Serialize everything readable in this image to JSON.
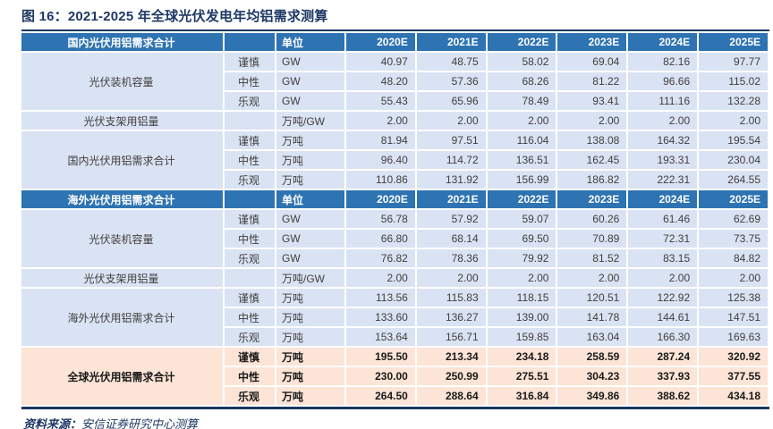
{
  "title": "图 16：2021-2025 年全球光伏发电年均铝需求测算",
  "unit_header": "单位",
  "years": [
    "2020E",
    "2021E",
    "2022E",
    "2023E",
    "2024E",
    "2025E"
  ],
  "colors": {
    "section_header_blue": "#2e73b2",
    "body_row_blue": "#dae3f3",
    "total_row_peach": "#fce4d6",
    "title_navy": "#1f3864",
    "rule_navy": "#17375e",
    "body_text": "#3f3f3f"
  },
  "sections": [
    {
      "header_label": "国内光伏用铝需求合计",
      "groups": [
        {
          "label": "光伏装机容量",
          "rows": [
            {
              "scenario": "谨慎",
              "unit": "GW",
              "values": [
                "40.97",
                "48.75",
                "58.02",
                "69.04",
                "82.16",
                "97.77"
              ]
            },
            {
              "scenario": "中性",
              "unit": "GW",
              "values": [
                "48.20",
                "57.36",
                "68.26",
                "81.22",
                "96.66",
                "115.02"
              ]
            },
            {
              "scenario": "乐观",
              "unit": "GW",
              "values": [
                "55.43",
                "65.96",
                "78.49",
                "93.41",
                "111.16",
                "132.28"
              ]
            }
          ]
        },
        {
          "label": "光伏支架用铝量",
          "rows": [
            {
              "scenario": "",
              "unit": "万吨/GW",
              "values": [
                "2.00",
                "2.00",
                "2.00",
                "2.00",
                "2.00",
                "2.00"
              ]
            }
          ]
        },
        {
          "label": "国内光伏用铝需求合计",
          "rows": [
            {
              "scenario": "谨慎",
              "unit": "万吨",
              "values": [
                "81.94",
                "97.51",
                "116.04",
                "138.08",
                "164.32",
                "195.54"
              ]
            },
            {
              "scenario": "中性",
              "unit": "万吨",
              "values": [
                "96.40",
                "114.72",
                "136.51",
                "162.45",
                "193.31",
                "230.04"
              ]
            },
            {
              "scenario": "乐观",
              "unit": "万吨",
              "values": [
                "110.86",
                "131.92",
                "156.99",
                "186.82",
                "222.31",
                "264.55"
              ]
            }
          ]
        }
      ]
    },
    {
      "header_label": "海外光伏用铝需求合计",
      "groups": [
        {
          "label": "光伏装机容量",
          "rows": [
            {
              "scenario": "谨慎",
              "unit": "GW",
              "values": [
                "56.78",
                "57.92",
                "59.07",
                "60.26",
                "61.46",
                "62.69"
              ]
            },
            {
              "scenario": "中性",
              "unit": "GW",
              "values": [
                "66.80",
                "68.14",
                "69.50",
                "70.89",
                "72.31",
                "73.75"
              ]
            },
            {
              "scenario": "乐观",
              "unit": "GW",
              "values": [
                "76.82",
                "78.36",
                "79.92",
                "81.52",
                "83.15",
                "84.82"
              ]
            }
          ]
        },
        {
          "label": "光伏支架用铝量",
          "rows": [
            {
              "scenario": "",
              "unit": "万吨/GW",
              "values": [
                "2.00",
                "2.00",
                "2.00",
                "2.00",
                "2.00",
                "2.00"
              ]
            }
          ]
        },
        {
          "label": "海外光伏用铝需求合计",
          "rows": [
            {
              "scenario": "谨慎",
              "unit": "万吨",
              "values": [
                "113.56",
                "115.83",
                "118.15",
                "120.51",
                "122.92",
                "125.38"
              ]
            },
            {
              "scenario": "中性",
              "unit": "万吨",
              "values": [
                "133.60",
                "136.27",
                "139.00",
                "141.78",
                "144.61",
                "147.51"
              ]
            },
            {
              "scenario": "乐观",
              "unit": "万吨",
              "values": [
                "153.64",
                "156.71",
                "159.85",
                "163.04",
                "166.30",
                "169.63"
              ]
            }
          ]
        }
      ]
    }
  ],
  "total": {
    "label": "全球光伏用铝需求合计",
    "rows": [
      {
        "scenario": "谨慎",
        "unit": "万吨",
        "values": [
          "195.50",
          "213.34",
          "234.18",
          "258.59",
          "287.24",
          "320.92"
        ]
      },
      {
        "scenario": "中性",
        "unit": "万吨",
        "values": [
          "230.00",
          "250.99",
          "275.51",
          "304.23",
          "337.93",
          "377.55"
        ]
      },
      {
        "scenario": "乐观",
        "unit": "万吨",
        "values": [
          "264.50",
          "288.64",
          "316.84",
          "349.86",
          "388.62",
          "434.18"
        ]
      }
    ]
  },
  "footer": {
    "prefix": "资料来源：",
    "text": "安信证券研究中心测算"
  }
}
